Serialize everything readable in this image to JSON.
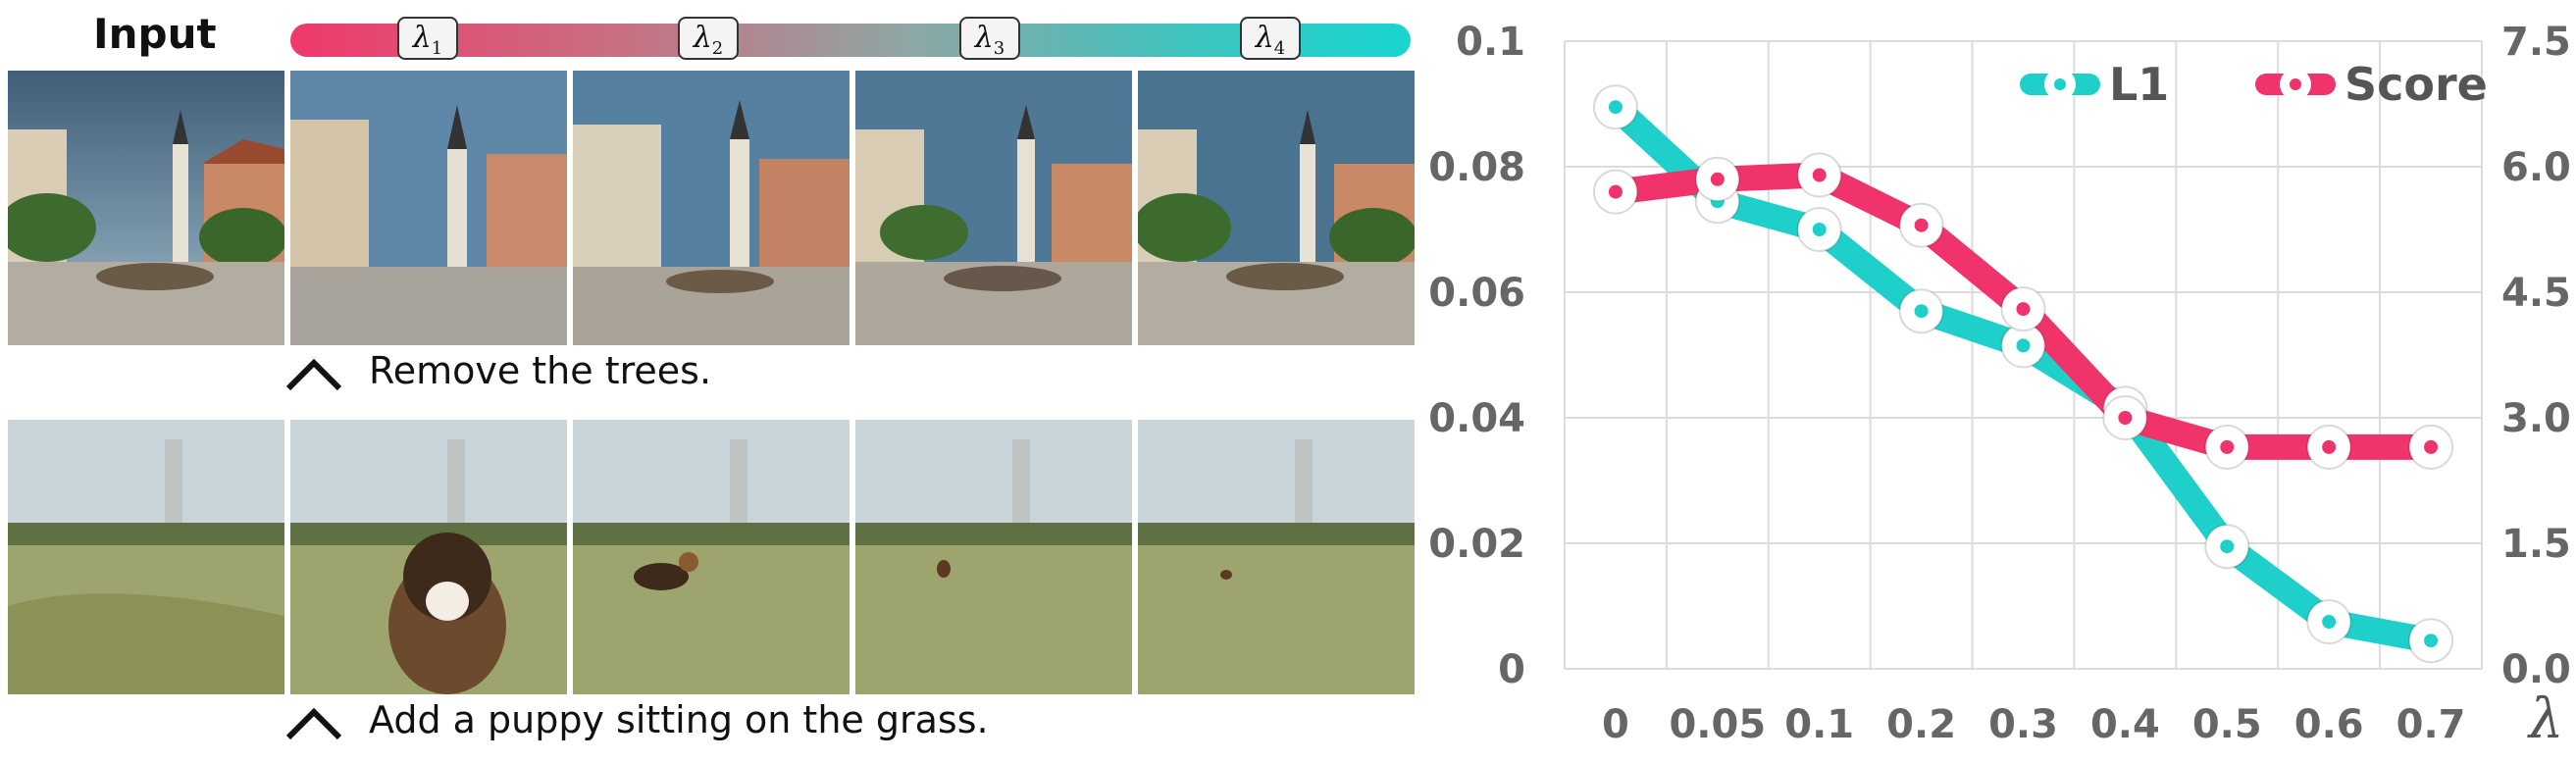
{
  "left_panel": {
    "input_label": "Input",
    "lambda_tags": [
      {
        "sym": "λ",
        "sub": "1"
      },
      {
        "sym": "λ",
        "sub": "2"
      },
      {
        "sym": "λ",
        "sub": "3"
      },
      {
        "sym": "λ",
        "sub": "4"
      }
    ],
    "row1_caption": "Remove the trees.",
    "row2_caption": "Add a puppy sitting on the grass."
  },
  "chart_data": {
    "type": "line",
    "categories": [
      "0",
      "0.05",
      "0.1",
      "0.2",
      "0.3",
      "0.4",
      "0.5",
      "0.6",
      "0.7"
    ],
    "xlabel": "λ",
    "y_left": {
      "ticks": [
        "0",
        "0.02",
        "0.04",
        "0.06",
        "0.08",
        "0.1"
      ],
      "ylim": [
        0,
        0.1
      ]
    },
    "y_right": {
      "ticks": [
        "0.0",
        "1.5",
        "3.0",
        "4.5",
        "6.0",
        "7.5"
      ],
      "ylim": [
        0,
        7.5
      ]
    },
    "series": [
      {
        "name": "L1",
        "axis": "left",
        "color": "#1fcfca",
        "values": [
          0.0895,
          0.0745,
          0.07,
          0.057,
          0.0515,
          0.0415,
          0.0195,
          0.0075,
          0.0045
        ]
      },
      {
        "name": "Score",
        "axis": "right",
        "color": "#f0336b",
        "values": [
          5.7,
          5.85,
          5.9,
          5.3,
          4.3,
          3.0,
          2.65,
          2.65,
          2.65
        ]
      }
    ],
    "legend": "top-right",
    "grid": true
  }
}
